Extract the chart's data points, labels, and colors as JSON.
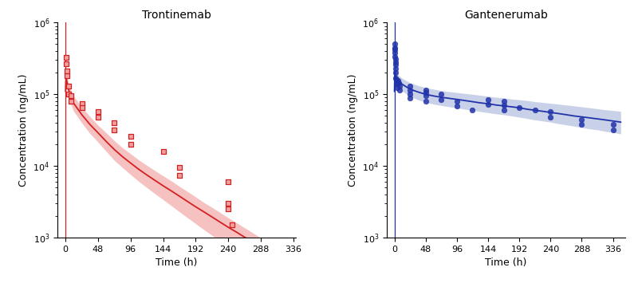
{
  "tront_title": "Trontinemab",
  "gant_title": "Gantenerumab",
  "xlabel": "Time (h)",
  "ylabel": "Concentration (ng/mL)",
  "ylim": [
    1000,
    1000000
  ],
  "xlim_tront": [
    -12,
    340
  ],
  "xlim_gant": [
    -12,
    355
  ],
  "xticks_tront": [
    0,
    48,
    96,
    144,
    192,
    240,
    288,
    336
  ],
  "xticks_gant": [
    0,
    48,
    96,
    144,
    192,
    240,
    288,
    336
  ],
  "tront_color": "#d42020",
  "tront_shade_color": "#f0a0a0",
  "gant_color": "#2233aa",
  "gant_shade_color": "#8899cc",
  "tront_obs_x": [
    1,
    1,
    2,
    2,
    4,
    4,
    8,
    8,
    24,
    24,
    48,
    48,
    72,
    72,
    96,
    96,
    144,
    168,
    168,
    240,
    240,
    240,
    246
  ],
  "tront_obs_y": [
    330000,
    270000,
    210000,
    180000,
    130000,
    100000,
    95000,
    80000,
    75000,
    65000,
    58000,
    48000,
    40000,
    32000,
    26000,
    20000,
    16000,
    9500,
    7500,
    6000,
    3000,
    2500,
    1500
  ],
  "tront_line_t": [
    0,
    0.5,
    1,
    2,
    4,
    8,
    12,
    24,
    36,
    48,
    60,
    72,
    84,
    96,
    108,
    120,
    132,
    144,
    156,
    168,
    180,
    192,
    204,
    216,
    228,
    240,
    252,
    264,
    276,
    288,
    300
  ],
  "tront_line_y": [
    110000,
    155000,
    170000,
    150000,
    120000,
    92000,
    75000,
    52000,
    38000,
    29000,
    22000,
    17000,
    13500,
    11000,
    9000,
    7500,
    6300,
    5300,
    4500,
    3800,
    3200,
    2700,
    2300,
    1950,
    1650,
    1400,
    1200,
    1020,
    870,
    740,
    630
  ],
  "tront_upper_y": [
    120000,
    175000,
    200000,
    180000,
    148000,
    115000,
    94000,
    66000,
    49000,
    37000,
    29000,
    22500,
    18000,
    14800,
    12200,
    10200,
    8600,
    7300,
    6200,
    5200,
    4400,
    3700,
    3100,
    2650,
    2250,
    1900,
    1620,
    1380,
    1170,
    1000,
    850
  ],
  "tront_lower_y": [
    100000,
    135000,
    145000,
    122000,
    95000,
    72000,
    58000,
    40000,
    28500,
    21500,
    16000,
    12000,
    9500,
    7600,
    6100,
    5000,
    4100,
    3400,
    2800,
    2300,
    1900,
    1570,
    1300,
    1080,
    890,
    740,
    615,
    510,
    420,
    350,
    290
  ],
  "gant_obs_x": [
    0.5,
    0.5,
    1,
    1,
    1,
    1.5,
    1.5,
    2,
    2,
    2,
    2,
    3,
    3,
    4,
    4,
    5,
    6,
    8,
    8,
    24,
    24,
    24,
    24,
    48,
    48,
    48,
    48,
    72,
    72,
    96,
    96,
    120,
    144,
    144,
    168,
    168,
    168,
    192,
    216,
    240,
    240,
    288,
    288,
    336,
    336
  ],
  "gant_obs_y": [
    500000,
    440000,
    420000,
    380000,
    340000,
    310000,
    280000,
    260000,
    230000,
    200000,
    170000,
    160000,
    140000,
    140000,
    125000,
    155000,
    145000,
    130000,
    115000,
    130000,
    115000,
    100000,
    88000,
    115000,
    105000,
    95000,
    80000,
    100000,
    85000,
    80000,
    68000,
    60000,
    85000,
    72000,
    80000,
    70000,
    60000,
    65000,
    60000,
    58000,
    48000,
    45000,
    38000,
    38000,
    32000
  ],
  "gant_line_t": [
    0,
    0.5,
    1,
    2,
    4,
    8,
    12,
    24,
    36,
    48,
    60,
    72,
    84,
    96,
    108,
    120,
    132,
    144,
    156,
    168,
    180,
    192,
    204,
    216,
    228,
    240,
    252,
    264,
    276,
    288,
    300,
    312,
    324,
    336,
    348
  ],
  "gant_line_y": [
    110000,
    210000,
    200000,
    180000,
    162000,
    148000,
    138000,
    118000,
    108000,
    100000,
    95000,
    91000,
    88000,
    85000,
    82000,
    79000,
    76000,
    74000,
    71000,
    69000,
    67000,
    65000,
    62000,
    60000,
    58000,
    56000,
    54000,
    52000,
    50000,
    48500,
    47000,
    45500,
    44000,
    42500,
    41000
  ],
  "gant_upper_y": [
    125000,
    240000,
    230000,
    210000,
    192000,
    178000,
    167000,
    145000,
    133000,
    124000,
    118000,
    113000,
    109000,
    106000,
    103000,
    100000,
    97000,
    94000,
    91000,
    89000,
    86000,
    84000,
    82000,
    79000,
    77000,
    75000,
    73000,
    71000,
    69000,
    67000,
    65000,
    63000,
    61000,
    59500,
    58000
  ],
  "gant_lower_y": [
    95000,
    180000,
    170000,
    150000,
    133000,
    120000,
    111000,
    94000,
    84000,
    78000,
    73000,
    70000,
    67000,
    65000,
    62000,
    60000,
    57500,
    55500,
    53500,
    52000,
    50000,
    48000,
    46000,
    44000,
    42500,
    41000,
    39000,
    37500,
    36000,
    34500,
    33000,
    32000,
    30500,
    29500,
    28000
  ]
}
